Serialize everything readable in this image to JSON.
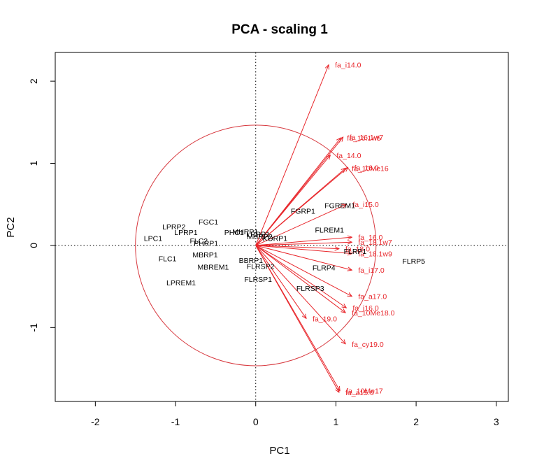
{
  "chart_data": {
    "type": "scatter",
    "title": "PCA - scaling 1",
    "xlabel": "PC1",
    "ylabel": "PC2",
    "xlim": [
      -2.5,
      3.15
    ],
    "ylim": [
      -1.9,
      2.35
    ],
    "xticks": [
      -2,
      -1,
      0,
      1,
      2,
      3
    ],
    "yticks": [
      -1,
      0,
      1,
      2
    ],
    "circle_radius": 1.5,
    "reference_lines": [
      {
        "axis": "x",
        "value": 0
      },
      {
        "axis": "y",
        "value": 0
      }
    ],
    "colors": {
      "species": "#e8262b",
      "circle": "#d7383e",
      "sites": "#000000"
    },
    "sites": [
      {
        "label": "LPRP2",
        "x": -1.02,
        "y": 0.23
      },
      {
        "label": "FGC1",
        "x": -0.59,
        "y": 0.29
      },
      {
        "label": "LPRP1",
        "x": -0.87,
        "y": 0.16
      },
      {
        "label": "LPC1",
        "x": -1.28,
        "y": 0.09
      },
      {
        "label": "FLC2",
        "x": -0.71,
        "y": 0.06
      },
      {
        "label": "PHRP1",
        "x": -0.62,
        "y": 0.03
      },
      {
        "label": "PHC1",
        "x": -0.27,
        "y": 0.16
      },
      {
        "label": "MHRP1",
        "x": -0.13,
        "y": 0.17
      },
      {
        "label": "LRRP1",
        "x": 0.03,
        "y": 0.14
      },
      {
        "label": "MHRP2",
        "x": 0.05,
        "y": 0.11
      },
      {
        "label": "KORP1",
        "x": 0.24,
        "y": 0.09
      },
      {
        "label": "MBRP1",
        "x": -0.63,
        "y": -0.11
      },
      {
        "label": "FLC1",
        "x": -1.1,
        "y": -0.16
      },
      {
        "label": "MBREM1",
        "x": -0.53,
        "y": -0.26
      },
      {
        "label": "BBRP1",
        "x": -0.06,
        "y": -0.18
      },
      {
        "label": "FLRSP2",
        "x": 0.06,
        "y": -0.25
      },
      {
        "label": "FLRSP1",
        "x": 0.03,
        "y": -0.41
      },
      {
        "label": "LPREM1",
        "x": -0.93,
        "y": -0.45
      },
      {
        "label": "FGRP1",
        "x": 0.59,
        "y": 0.42
      },
      {
        "label": "FGREM1",
        "x": 1.05,
        "y": 0.49
      },
      {
        "label": "FLREM1",
        "x": 0.92,
        "y": 0.19
      },
      {
        "label": "FLRP1",
        "x": 1.24,
        "y": -0.07
      },
      {
        "label": "FLRP4",
        "x": 0.85,
        "y": -0.27
      },
      {
        "label": "FLRSP3",
        "x": 0.68,
        "y": -0.52
      },
      {
        "label": "FLRP5",
        "x": 1.97,
        "y": -0.19
      }
    ],
    "species": [
      {
        "label": "fa_i14.0",
        "x": 0.91,
        "y": 2.2
      },
      {
        "label": "fa_16.1w7",
        "x": 1.09,
        "y": 1.32
      },
      {
        "label": "fa_16.1w5",
        "x": 1.06,
        "y": 1.31
      },
      {
        "label": "fa_14.0",
        "x": 0.93,
        "y": 1.1
      },
      {
        "label": "fa_16.0",
        "x": 1.15,
        "y": 0.95
      },
      {
        "label": "fa_10Me16",
        "x": 1.12,
        "y": 0.94
      },
      {
        "label": "fa_i15.0",
        "x": 1.13,
        "y": 0.5
      },
      {
        "label": "fa_16.0",
        "x": 1.2,
        "y": 0.1
      },
      {
        "label": "fa_18.1w7",
        "x": 1.2,
        "y": 0.04
      },
      {
        "label": "fa_18.0",
        "x": 1.04,
        "y": -0.04
      },
      {
        "label": "fa_18.1w9",
        "x": 1.2,
        "y": -0.1
      },
      {
        "label": "fa_i17.0",
        "x": 1.2,
        "y": -0.3
      },
      {
        "label": "fa_a17.0",
        "x": 1.2,
        "y": -0.62
      },
      {
        "label": "fa_i16.0",
        "x": 1.13,
        "y": -0.76
      },
      {
        "label": "fa_10Me18.0",
        "x": 1.12,
        "y": -0.82
      },
      {
        "label": "fa_19.0",
        "x": 0.63,
        "y": -0.89
      },
      {
        "label": "fa_cy19.0",
        "x": 1.12,
        "y": -1.2
      },
      {
        "label": "fa_10Me17",
        "x": 1.05,
        "y": -1.77
      },
      {
        "label": "fa_a15.0",
        "x": 1.04,
        "y": -1.79
      }
    ]
  }
}
